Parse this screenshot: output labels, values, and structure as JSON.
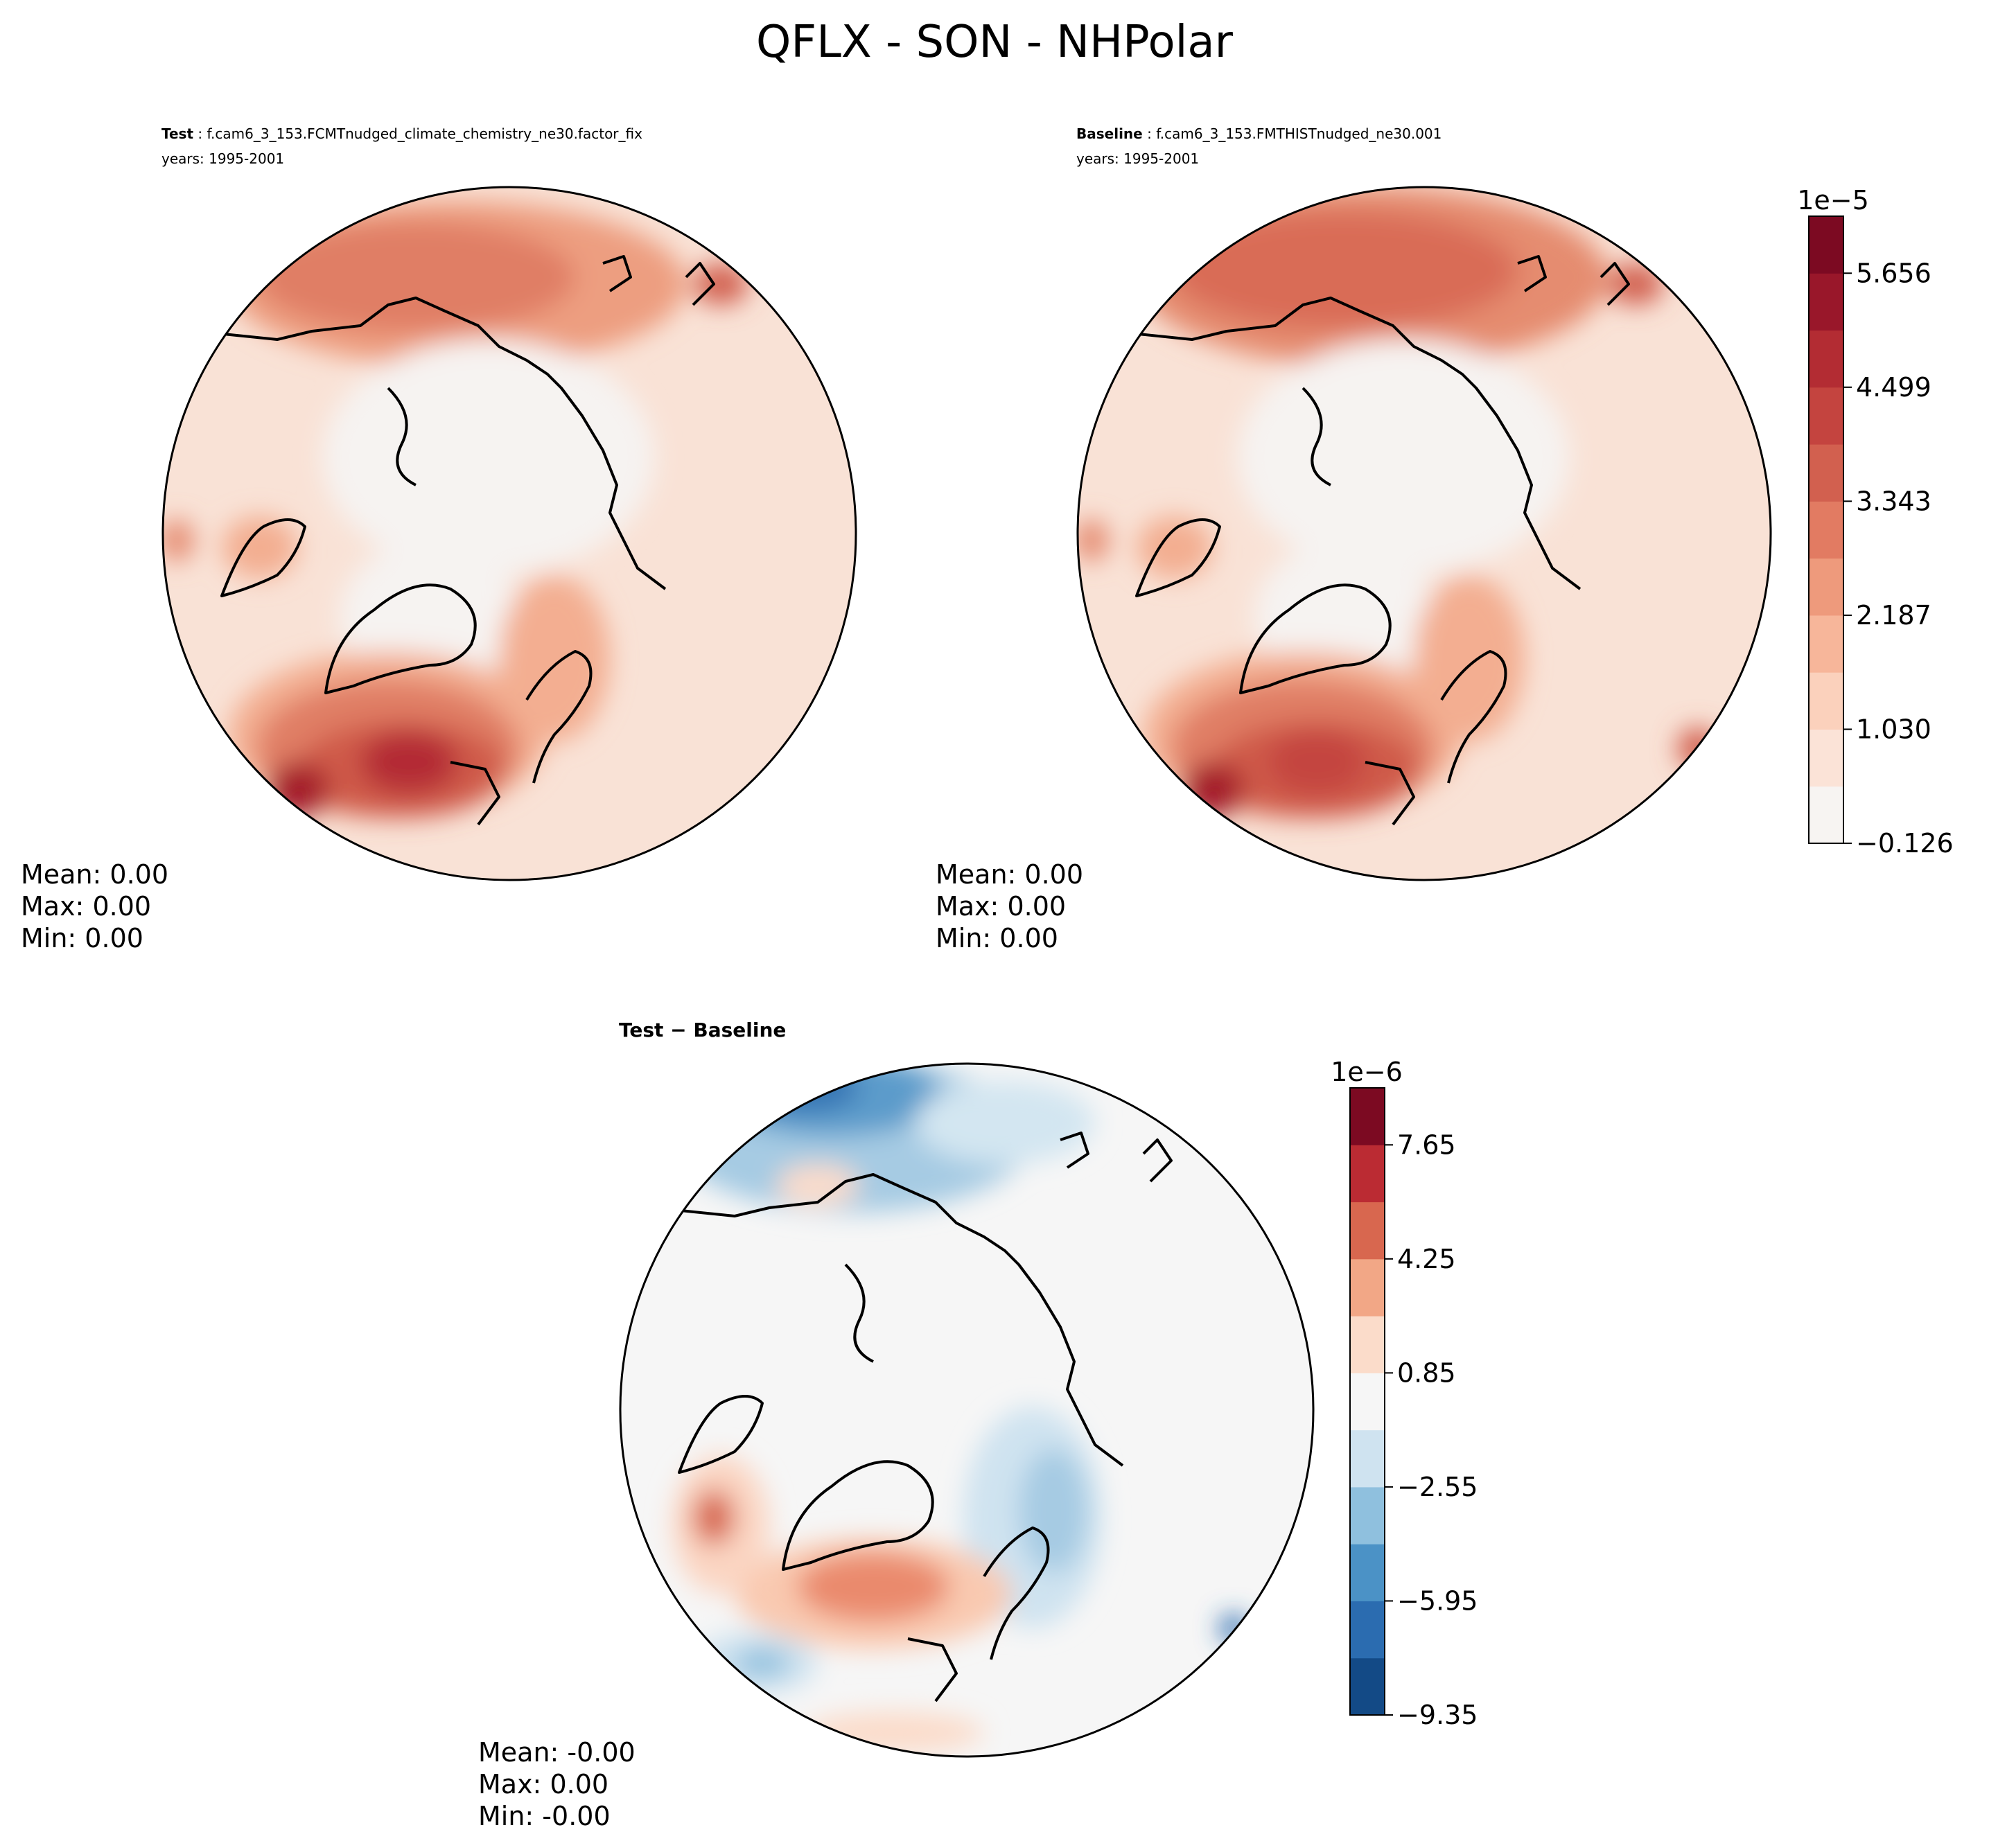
{
  "figure": {
    "title": "QFLX - SON - NHPolar"
  },
  "panels": {
    "test": {
      "label_bold": "Test",
      "case": " : f.cam6_3_153.FCMTnudged_climate_chemistry_ne30.factor_fix",
      "years": "years: 1995-2001",
      "stats": [
        "Mean:  0.00",
        "Max:  0.00",
        "Min:  0.00"
      ]
    },
    "baseline": {
      "label_bold": "Baseline",
      "case": " : f.cam6_3_153.FMTHISTnudged_ne30.001",
      "years": "years: 1995-2001",
      "stats": [
        "Mean:  0.00",
        "Max:  0.00",
        "Min:  0.00"
      ]
    },
    "diff": {
      "label_bold": "Test − Baseline",
      "stats": [
        "Mean: -0.00",
        "Max:  0.00",
        "Min: -0.00"
      ]
    }
  },
  "colorbars": {
    "main": {
      "exponent": "1e−5",
      "ticks": [
        "−0.126",
        "1.030",
        "2.187",
        "3.343",
        "4.499",
        "5.656"
      ],
      "colors": [
        "#f7f4f2",
        "#fbe3d7",
        "#fbd1bc",
        "#f7b69a",
        "#ee9a7c",
        "#e27b62",
        "#d2604f",
        "#c4443f",
        "#b32c33",
        "#99172a",
        "#7c0a22"
      ]
    },
    "diff": {
      "exponent": "1e−6",
      "ticks": [
        "−9.35",
        "−5.95",
        "−2.55",
        "0.85",
        "4.25",
        "7.65"
      ],
      "colors": [
        "#134a86",
        "#2b6cb0",
        "#4b92c6",
        "#8fc0de",
        "#cfe3f0",
        "#f6f6f6",
        "#fbdcca",
        "#f2a786",
        "#d8674f",
        "#bb2b33",
        "#7c0a22"
      ]
    }
  },
  "chart_data": {
    "type": "heatmap",
    "title": "QFLX - SON - NHPolar",
    "variable": "QFLX",
    "season": "SON",
    "region": "NHPolar",
    "maps": [
      {
        "name": "Test",
        "case": "f.cam6_3_153.FCMTnudged_climate_chemistry_ne30.factor_fix",
        "years": "1995-2001",
        "mean": 0.0,
        "max": 0.0,
        "min": 0.0,
        "colorbar": {
          "scale": 1e-05,
          "tick_values": [
            -0.126,
            1.03,
            2.187,
            3.343,
            4.499,
            5.656
          ],
          "range": [
            -0.126,
            6.234
          ],
          "levels": 11
        }
      },
      {
        "name": "Baseline",
        "case": "f.cam6_3_153.FMTHISTnudged_ne30.001",
        "years": "1995-2001",
        "mean": 0.0,
        "max": 0.0,
        "min": 0.0,
        "colorbar": {
          "scale": 1e-05,
          "tick_values": [
            -0.126,
            1.03,
            2.187,
            3.343,
            4.499,
            5.656
          ],
          "range": [
            -0.126,
            6.234
          ],
          "levels": 11
        }
      },
      {
        "name": "Test − Baseline",
        "mean": -0.0,
        "max": 0.0,
        "min": -0.0,
        "colorbar": {
          "scale": 1e-06,
          "tick_values": [
            -9.35,
            -5.95,
            -2.55,
            0.85,
            4.25,
            7.65
          ],
          "range": [
            -9.35,
            9.35
          ],
          "levels": 11
        }
      }
    ]
  }
}
